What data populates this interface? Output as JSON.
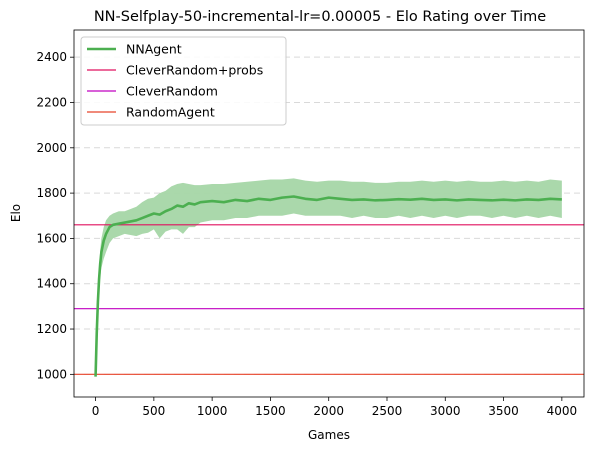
{
  "chart_data": {
    "type": "line",
    "title": "NN-Selfplay-50-incremental-lr=0.00005 - Elo Rating over Time",
    "xlabel": "Games",
    "ylabel": "Elo",
    "xlim": [
      -185,
      4190
    ],
    "ylim": [
      900,
      2520
    ],
    "xticks": [
      0,
      500,
      1000,
      1500,
      2000,
      2500,
      3000,
      3500,
      4000
    ],
    "yticks": [
      1000,
      1200,
      1400,
      1600,
      1800,
      2000,
      2200,
      2400
    ],
    "grid": "y-dashed",
    "legend_position": "top-left",
    "series": [
      {
        "name": "NNAgent",
        "color": "#4caf50",
        "band_color": "#a5d6a7",
        "x": [
          0,
          10,
          20,
          30,
          40,
          50,
          70,
          90,
          120,
          150,
          200,
          250,
          300,
          350,
          400,
          450,
          500,
          550,
          600,
          650,
          700,
          750,
          800,
          850,
          900,
          1000,
          1100,
          1200,
          1300,
          1400,
          1500,
          1600,
          1700,
          1800,
          1900,
          2000,
          2100,
          2200,
          2300,
          2400,
          2500,
          2600,
          2700,
          2800,
          2900,
          3000,
          3100,
          3200,
          3300,
          3400,
          3500,
          3600,
          3700,
          3800,
          3900,
          4000
        ],
        "values": [
          990,
          1180,
          1320,
          1420,
          1490,
          1540,
          1590,
          1620,
          1650,
          1660,
          1665,
          1670,
          1675,
          1680,
          1690,
          1700,
          1710,
          1705,
          1720,
          1730,
          1745,
          1740,
          1755,
          1750,
          1760,
          1765,
          1760,
          1770,
          1765,
          1775,
          1770,
          1780,
          1785,
          1775,
          1770,
          1780,
          1775,
          1770,
          1772,
          1768,
          1770,
          1773,
          1771,
          1775,
          1770,
          1772,
          1768,
          1772,
          1770,
          1768,
          1771,
          1768,
          1772,
          1770,
          1775,
          1772
        ],
        "lower": [
          985,
          1150,
          1280,
          1370,
          1430,
          1470,
          1510,
          1540,
          1580,
          1600,
          1610,
          1620,
          1615,
          1610,
          1620,
          1625,
          1640,
          1600,
          1630,
          1640,
          1640,
          1620,
          1650,
          1650,
          1670,
          1680,
          1680,
          1690,
          1690,
          1700,
          1700,
          1700,
          1710,
          1700,
          1700,
          1700,
          1700,
          1690,
          1700,
          1690,
          1690,
          1700,
          1690,
          1700,
          1690,
          1700,
          1690,
          1700,
          1700,
          1690,
          1700,
          1690,
          1700,
          1690,
          1700,
          1690
        ],
        "upper": [
          995,
          1210,
          1360,
          1470,
          1550,
          1600,
          1650,
          1680,
          1700,
          1710,
          1720,
          1720,
          1730,
          1740,
          1760,
          1775,
          1780,
          1800,
          1810,
          1830,
          1840,
          1845,
          1840,
          1835,
          1835,
          1840,
          1840,
          1845,
          1850,
          1855,
          1860,
          1860,
          1865,
          1855,
          1850,
          1855,
          1855,
          1850,
          1850,
          1845,
          1845,
          1850,
          1850,
          1855,
          1850,
          1855,
          1850,
          1855,
          1850,
          1850,
          1855,
          1850,
          1855,
          1850,
          1860,
          1855
        ]
      },
      {
        "name": "CleverRandom+probs",
        "color": "#e0115f",
        "hline": 1660
      },
      {
        "name": "CleverRandom",
        "color": "#c000c0",
        "hline": 1290
      },
      {
        "name": "RandomAgent",
        "color": "#e8432a",
        "hline": 1000
      }
    ]
  }
}
